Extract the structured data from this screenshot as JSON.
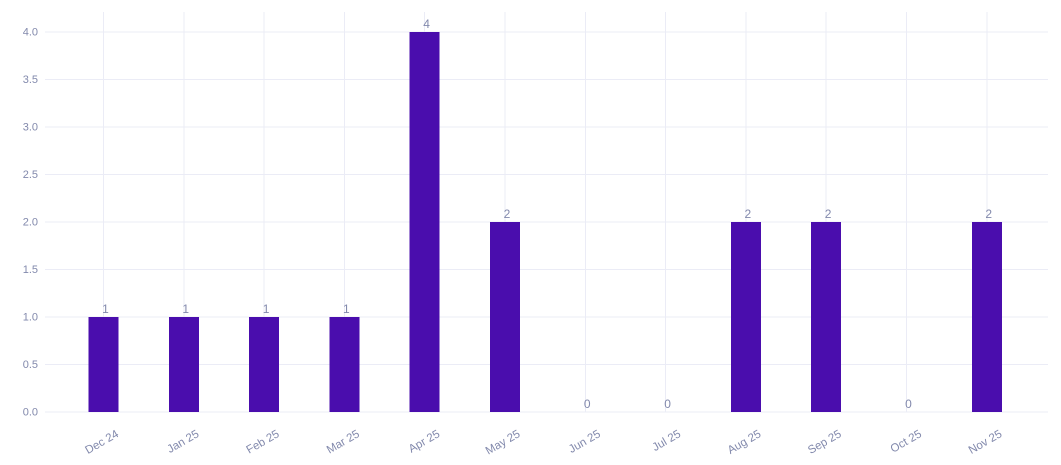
{
  "chart_data": {
    "type": "bar",
    "categories": [
      "Dec 24",
      "Jan 25",
      "Feb 25",
      "Mar 25",
      "Apr 25",
      "May 25",
      "Jun 25",
      "Jul 25",
      "Aug 25",
      "Sep 25",
      "Oct 25",
      "Nov 25"
    ],
    "values": [
      1,
      1,
      1,
      1,
      4,
      2,
      0,
      0,
      2,
      2,
      0,
      2
    ],
    "data_labels": [
      "1",
      "1",
      "1",
      "1",
      "4",
      "2",
      "0",
      "0",
      "2",
      "2",
      "0",
      "2"
    ],
    "title": "",
    "xlabel": "",
    "ylabel": "",
    "ylim": [
      0,
      4
    ],
    "yticks": [
      0,
      0.5,
      1,
      1.5,
      2,
      2.5,
      3,
      3.5,
      4
    ],
    "ytick_labels": [
      "0.0",
      "0.5",
      "1.0",
      "1.5",
      "2.0",
      "2.5",
      "3.0",
      "3.5",
      "4.0"
    ],
    "grid": true,
    "legend": false,
    "colors": {
      "bar": "#4a0dad",
      "axis_label": "#8289ac",
      "value_label": "#8289ac",
      "gridline": "#ebecf6",
      "background": "#ffffff"
    }
  }
}
